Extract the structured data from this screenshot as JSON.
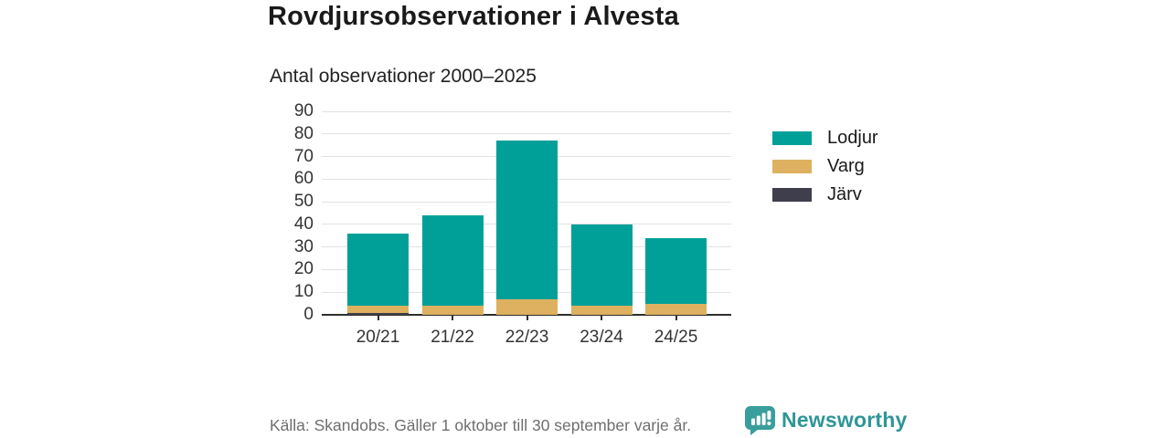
{
  "header": {
    "title": "Rovdjursobservationer i Alvesta",
    "subtitle": "Antal observationer 2000–2025"
  },
  "chart_data": {
    "type": "bar",
    "stacked": true,
    "title": "Rovdjursobservationer i Alvesta",
    "subtitle": "Antal observationer 2000–2025",
    "categories": [
      "20/21",
      "21/22",
      "22/23",
      "23/24",
      "24/25"
    ],
    "series": [
      {
        "name": "Lodjur",
        "color": "#00a099",
        "values": [
          32,
          40,
          70,
          36,
          29
        ]
      },
      {
        "name": "Varg",
        "color": "#ddb15f",
        "values": [
          3,
          4,
          7,
          4,
          5
        ]
      },
      {
        "name": "Järv",
        "color": "#3e3e4d",
        "values": [
          1,
          0,
          0,
          0,
          0
        ]
      }
    ],
    "stack_order_bottom_to_top": [
      "Järv",
      "Varg",
      "Lodjur"
    ],
    "totals": [
      36,
      44,
      77,
      40,
      34
    ],
    "xlabel": "",
    "ylabel": "",
    "ylim": [
      0,
      90
    ],
    "yticks": [
      0,
      10,
      20,
      30,
      40,
      50,
      60,
      70,
      80,
      90
    ],
    "grid": true,
    "legend_position": "right"
  },
  "footer": {
    "source": "Källa: Skandobs. Gäller 1 oktober till 30 september varje år.",
    "brand": "Newsworthy"
  },
  "colors": {
    "lodjur": "#00a099",
    "varg": "#ddb15f",
    "jarv": "#3e3e4d",
    "gridline": "#e2e2e2",
    "axis": "#2e2e2e",
    "source_text": "#6e6e6e",
    "brand_teal": "#2f9596"
  }
}
